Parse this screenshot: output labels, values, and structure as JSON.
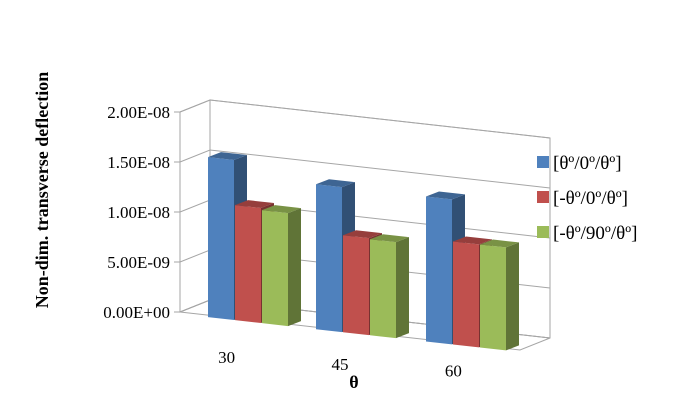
{
  "chart_data": {
    "type": "bar",
    "ylabel": "Non-dim. transverse deflection",
    "xlabel": "θ",
    "categories": [
      "30",
      "45",
      "60"
    ],
    "yticks": [
      "0.00E+00",
      "5.00E-09",
      "1.00E-08",
      "1.50E-08",
      "2.00E-08"
    ],
    "ylim": [
      0,
      2e-08
    ],
    "grid": true,
    "legend_position": "right",
    "series": [
      {
        "name": "[θº/0º/θº]",
        "color": "#4f81bd",
        "values": [
          1.6e-08,
          1.45e-08,
          1.45e-08
        ]
      },
      {
        "name": "[-θº/0º/θº]",
        "color": "#c0504d",
        "values": [
          1.15e-08,
          9.7e-09,
          1.03e-08
        ]
      },
      {
        "name": "[-θº/90º/θº]",
        "color": "#9bbb59",
        "values": [
          1.13e-08,
          9.6e-09,
          1.03e-08
        ]
      }
    ]
  }
}
